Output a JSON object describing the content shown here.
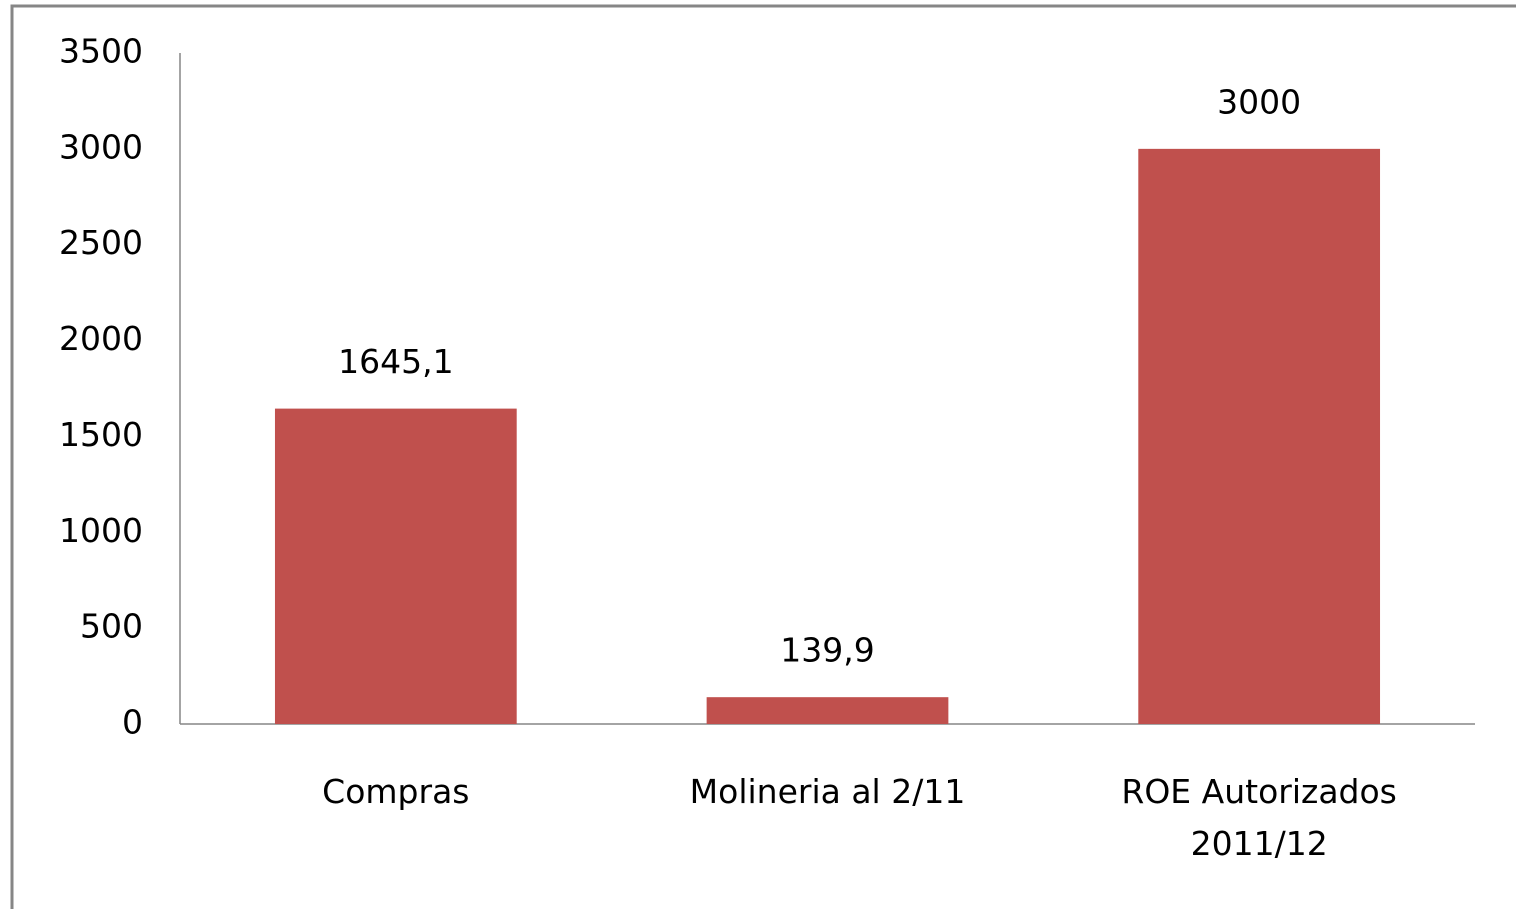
{
  "chart_data": {
    "type": "bar",
    "categories": [
      "Compras",
      "Molineria al 2/11",
      "ROE Autorizados 2011/12"
    ],
    "values": [
      1645.1,
      139.9,
      3000
    ],
    "value_labels": [
      "1645,1",
      "139,9",
      "3000"
    ],
    "color": "#c0504d",
    "ylim": [
      0,
      3500
    ],
    "yticks": [
      0,
      500,
      1000,
      1500,
      2000,
      2500,
      3000,
      3500
    ],
    "grid": false
  }
}
